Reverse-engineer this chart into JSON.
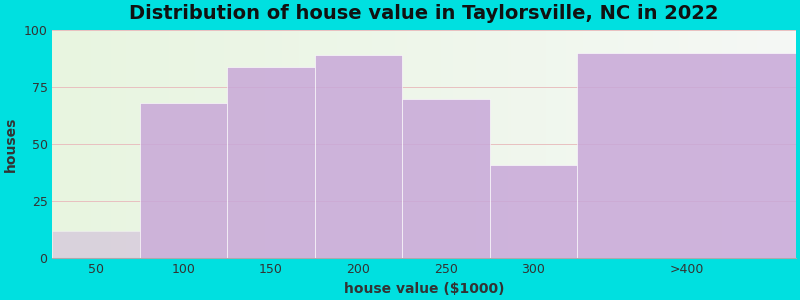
{
  "title": "Distribution of house value in Taylorsville, NC in 2022",
  "xlabel": "house value ($1000)",
  "ylabel": "houses",
  "bin_edges": [
    25,
    75,
    125,
    175,
    225,
    275,
    325,
    450
  ],
  "bin_labels": [
    "50",
    "100",
    "150",
    "200",
    "250",
    "300",
    ">400"
  ],
  "values": [
    12,
    68,
    84,
    89,
    70,
    41,
    90
  ],
  "bar_color": "#c8a8d8",
  "bar_alpha": 0.85,
  "first_bar_alpha": 0.45,
  "ylim": [
    0,
    100
  ],
  "yticks": [
    0,
    25,
    50,
    75,
    100
  ],
  "bg_outer": "#00e0e0",
  "bg_inner_color1": "#e8f5e0",
  "bg_inner_color2": "#f5f8f5",
  "title_fontsize": 14,
  "axis_label_fontsize": 10,
  "tick_fontsize": 9,
  "grid_color": "#e8c0c0",
  "spine_color": "#aaaaaa"
}
